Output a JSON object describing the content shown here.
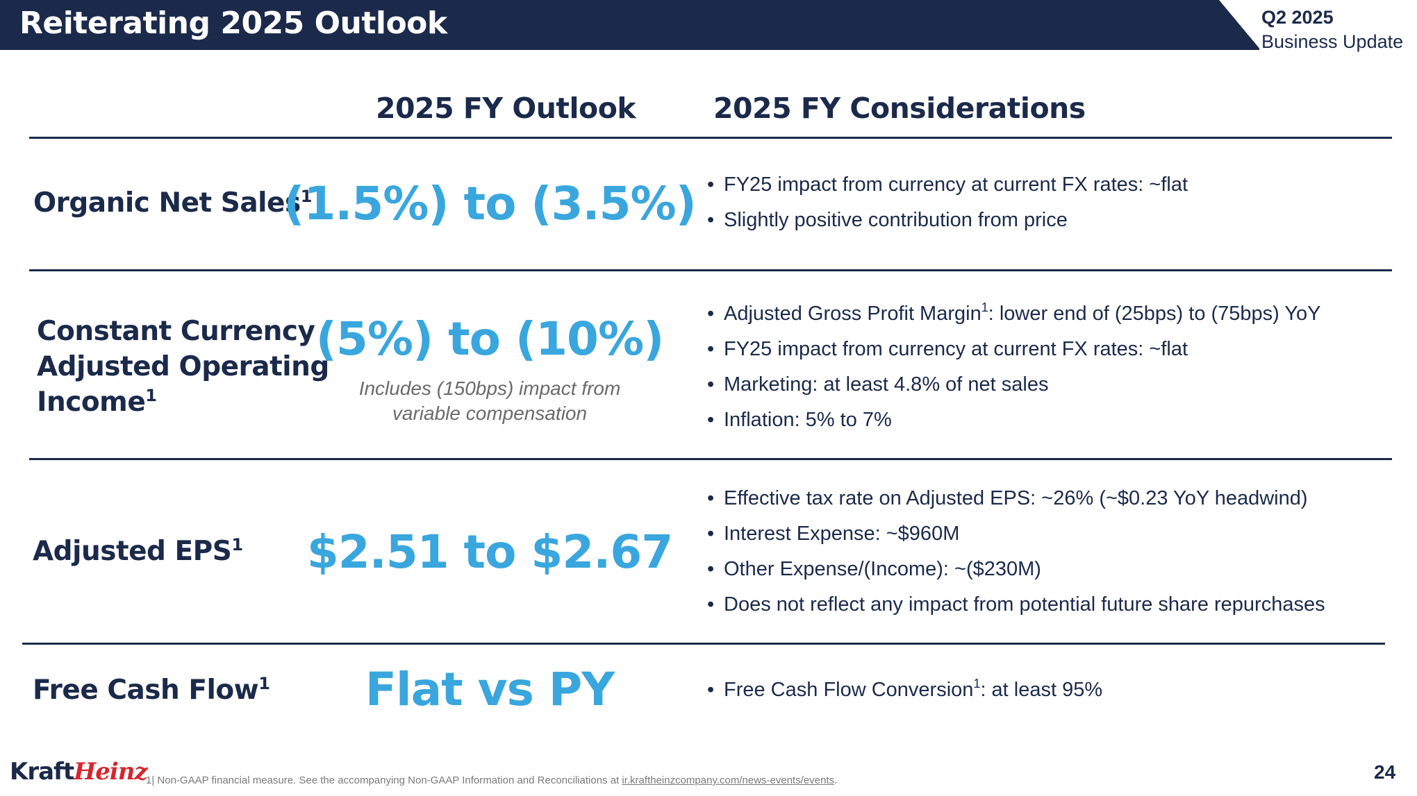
{
  "header": {
    "title": "Reiterating 2025 Outlook",
    "tag_line1": "Q2 2025",
    "tag_line2": "Business Update"
  },
  "columns": {
    "outlook": "2025 FY Outlook",
    "considerations": "2025 FY Considerations"
  },
  "rows": [
    {
      "label": "Organic Net Sales",
      "sup": "1",
      "outlook": "(1.5%) to (3.5%)",
      "bullets": [
        {
          "text": "FY25 impact  from currency at current FX rates: ~flat"
        },
        {
          "text": "Slightly positive contribution from price"
        }
      ]
    },
    {
      "label_lines": [
        "Constant Currency",
        "Adjusted Operating",
        "Income"
      ],
      "sup": "1",
      "outlook": "(5%) to (10%)",
      "note_lines": [
        "Includes (150bps) impact from",
        "variable compensation"
      ],
      "bullets": [
        {
          "pre": "Adjusted Gross Profit Margin",
          "sup": "1",
          "post": ": lower end of (25bps) to (75bps) YoY"
        },
        {
          "text": "FY25 impact from currency at current FX rates: ~flat"
        },
        {
          "text": "Marketing: at least 4.8% of net sales"
        },
        {
          "text": "Inflation: 5% to 7%"
        }
      ]
    },
    {
      "label": "Adjusted EPS",
      "sup": "1",
      "outlook": "$2.51 to $2.67",
      "bullets": [
        {
          "text": "Effective tax rate on Adjusted EPS: ~26% (~$0.23 YoY headwind)"
        },
        {
          "text": "Interest Expense: ~$960M"
        },
        {
          "text": "Other Expense/(Income): ~($230M)"
        },
        {
          "text": "Does not reflect any impact from potential future share repurchases"
        }
      ]
    },
    {
      "label": "Free Cash Flow",
      "sup": "1",
      "outlook": "Flat vs PY",
      "bullets": [
        {
          "pre": "Free Cash Flow Conversion",
          "sup": "1",
          "post": ": at least 95%"
        }
      ]
    }
  ],
  "footer": {
    "logo_kraft": "Kraft",
    "logo_heinz": "Heinz",
    "footnote_text": "1| Non-GAAP financial measure. See the accompanying Non-GAAP Information and Reconciliations at ",
    "footnote_link": "ir.kraftheinzcompany.com/news-events/events",
    "footnote_end": ".",
    "page_number": "24"
  },
  "colors": {
    "navy": "#1b2a4a",
    "accent_blue": "#3aa6de",
    "logo_red": "#d6262d"
  }
}
